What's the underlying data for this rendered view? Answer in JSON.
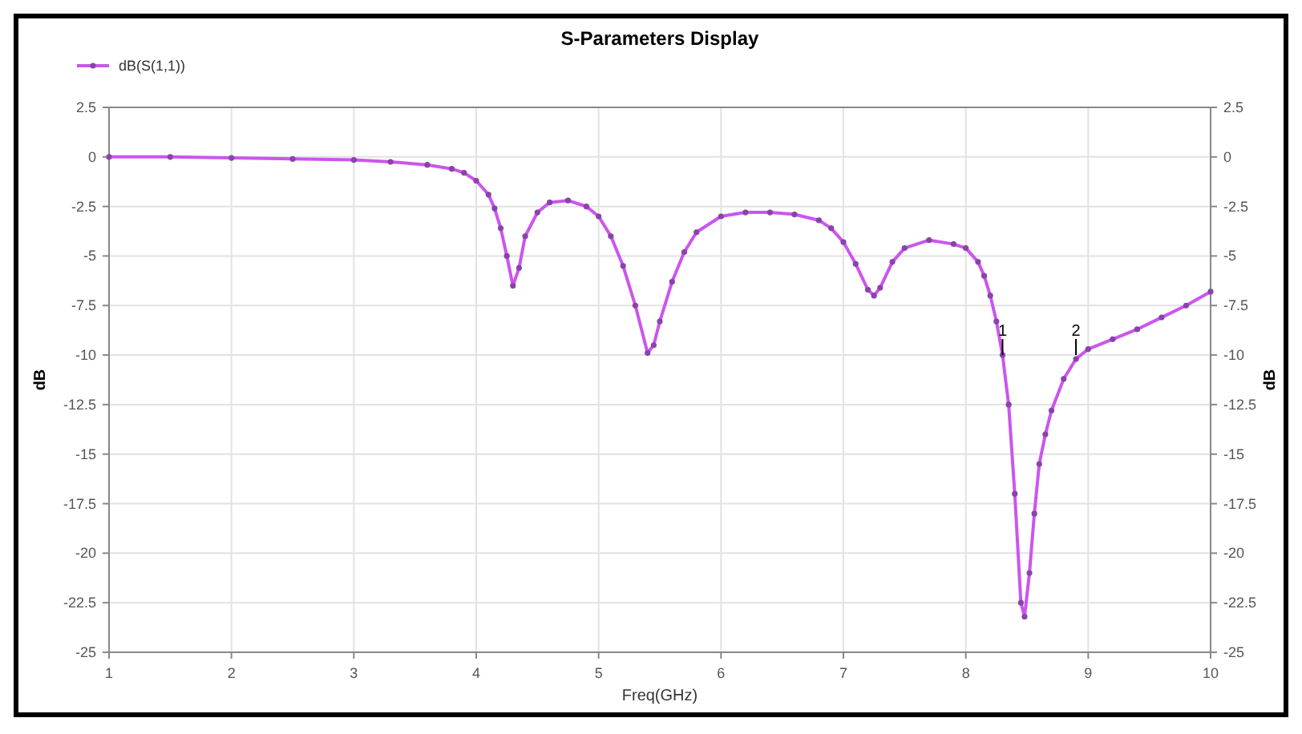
{
  "chart_data": {
    "type": "line",
    "title": "S-Parameters Display",
    "xlabel": "Freq(GHz)",
    "ylabel": "dB",
    "y2label": "dB",
    "x": [
      1,
      1.5,
      2,
      2.5,
      3,
      3.3,
      3.6,
      3.8,
      3.9,
      4.0,
      4.1,
      4.15,
      4.2,
      4.25,
      4.3,
      4.35,
      4.4,
      4.5,
      4.6,
      4.75,
      4.9,
      5.0,
      5.1,
      5.2,
      5.3,
      5.4,
      5.45,
      5.5,
      5.6,
      5.7,
      5.8,
      6.0,
      6.2,
      6.4,
      6.6,
      6.8,
      6.9,
      7.0,
      7.1,
      7.2,
      7.25,
      7.3,
      7.4,
      7.5,
      7.7,
      7.9,
      8.0,
      8.1,
      8.15,
      8.2,
      8.25,
      8.3,
      8.35,
      8.4,
      8.45,
      8.48,
      8.52,
      8.56,
      8.6,
      8.65,
      8.7,
      8.8,
      8.9,
      9.0,
      9.2,
      9.4,
      9.6,
      9.8,
      10
    ],
    "series": [
      {
        "name": "dB(S(1,1))",
        "color": "#cc55ee",
        "values": [
          0,
          0,
          -0.05,
          -0.1,
          -0.15,
          -0.25,
          -0.4,
          -0.6,
          -0.8,
          -1.2,
          -1.9,
          -2.6,
          -3.6,
          -5.0,
          -6.5,
          -5.6,
          -4.0,
          -2.8,
          -2.3,
          -2.2,
          -2.5,
          -3.0,
          -4.0,
          -5.5,
          -7.5,
          -9.9,
          -9.5,
          -8.3,
          -6.3,
          -4.8,
          -3.8,
          -3.0,
          -2.8,
          -2.8,
          -2.9,
          -3.2,
          -3.6,
          -4.3,
          -5.4,
          -6.7,
          -7.0,
          -6.6,
          -5.3,
          -4.6,
          -4.2,
          -4.4,
          -4.6,
          -5.3,
          -6.0,
          -7.0,
          -8.3,
          -10,
          -12.5,
          -17,
          -22.5,
          -23.2,
          -21,
          -18,
          -15.5,
          -14,
          -12.8,
          -11.2,
          -10.2,
          -9.7,
          -9.2,
          -8.7,
          -8.1,
          -7.5,
          -6.8
        ]
      }
    ],
    "xlim": [
      1,
      10
    ],
    "xticks": [
      1,
      2,
      3,
      4,
      5,
      6,
      7,
      8,
      9,
      10
    ],
    "ylim": [
      -25,
      2.5
    ],
    "yticks": [
      2.5,
      0,
      -2.5,
      -5,
      -7.5,
      -10,
      -12.5,
      -15,
      -17.5,
      -20,
      -22.5,
      -25
    ],
    "y2lim": [
      -25,
      2.5
    ],
    "y2ticks": [
      2.5,
      0,
      -2.5,
      -5,
      -7.5,
      -10,
      -12.5,
      -15,
      -17.5,
      -20,
      -22.5,
      -25
    ],
    "annotations": [
      {
        "text": "1",
        "x": 8.3,
        "y": -10
      },
      {
        "text": "2",
        "x": 8.9,
        "y": -10
      }
    ],
    "grid": true,
    "legend": "top left",
    "marker": "circle",
    "line_style": "solid"
  }
}
